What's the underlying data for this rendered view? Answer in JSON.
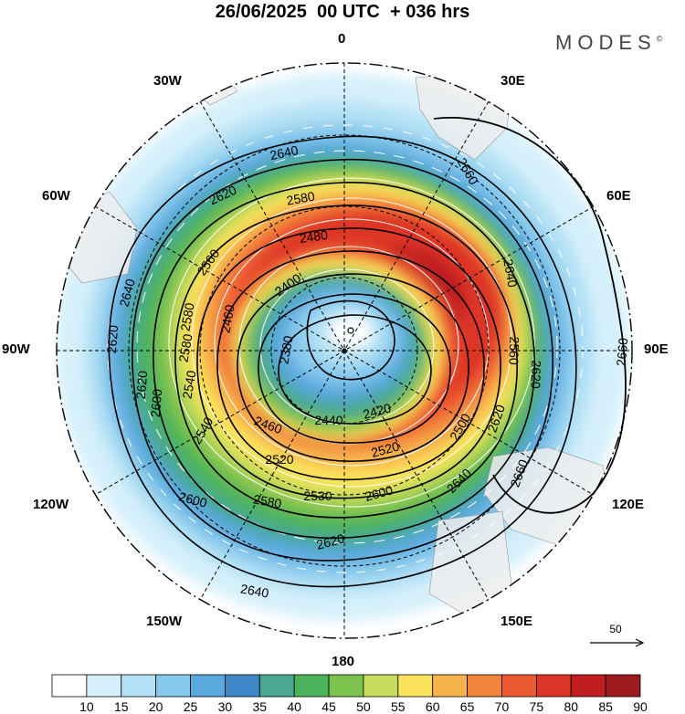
{
  "title": "26/06/2025  00 UTC  + 036 hrs",
  "brand": "MODES",
  "brand_mark": "©",
  "lon_labels": {
    "l0": "0",
    "l30e": "30E",
    "l60e": "60E",
    "l90e": "90E",
    "l120e": "120E",
    "l150e": "150E",
    "l180": "180",
    "l150w": "150W",
    "l120w": "120W",
    "l90w": "90W",
    "l60w": "60W",
    "l30w": "30W"
  },
  "contour_labels": [
    {
      "text": "2640"
    },
    {
      "text": "2660"
    },
    {
      "text": "2620"
    },
    {
      "text": "2580"
    },
    {
      "text": "2640"
    },
    {
      "text": "2620"
    },
    {
      "text": "2560"
    },
    {
      "text": "2480"
    },
    {
      "text": "2640"
    },
    {
      "text": "2400"
    },
    {
      "text": "2580"
    },
    {
      "text": "2460"
    },
    {
      "text": "2620"
    },
    {
      "text": "2560"
    },
    {
      "text": "2380"
    },
    {
      "text": "2580"
    },
    {
      "text": "2620"
    },
    {
      "text": "2540"
    },
    {
      "text": "2660"
    },
    {
      "text": "2600"
    },
    {
      "text": "2540"
    },
    {
      "text": "2420"
    },
    {
      "text": "2500"
    },
    {
      "text": "2460"
    },
    {
      "text": "2440"
    },
    {
      "text": "2620"
    },
    {
      "text": "2520"
    },
    {
      "text": "2520"
    },
    {
      "text": "2660"
    },
    {
      "text": "2600"
    },
    {
      "text": "2580"
    },
    {
      "text": "2530"
    },
    {
      "text": "2600"
    },
    {
      "text": "2640"
    },
    {
      "text": "2620"
    },
    {
      "text": "2640"
    }
  ],
  "reference_vector": {
    "label": "50"
  },
  "colorbar": {
    "ticks": [
      "10",
      "15",
      "20",
      "25",
      "30",
      "35",
      "40",
      "45",
      "50",
      "55",
      "60",
      "65",
      "70",
      "75",
      "80",
      "85",
      "90"
    ],
    "colors": [
      "#ffffff",
      "#d6f0fb",
      "#b4e1f5",
      "#87c9ec",
      "#5aa9de",
      "#3f88c7",
      "#4aa892",
      "#4db35a",
      "#7cc24f",
      "#c6dc5a",
      "#fbe35c",
      "#f7b44d",
      "#f3843d",
      "#ec5a33",
      "#dd3528",
      "#c11e22",
      "#9e1b1f"
    ]
  },
  "map_colors": {
    "land": "#eeeeee",
    "contour": "#000000",
    "grid": "#000000",
    "vector": "#ffffff"
  }
}
